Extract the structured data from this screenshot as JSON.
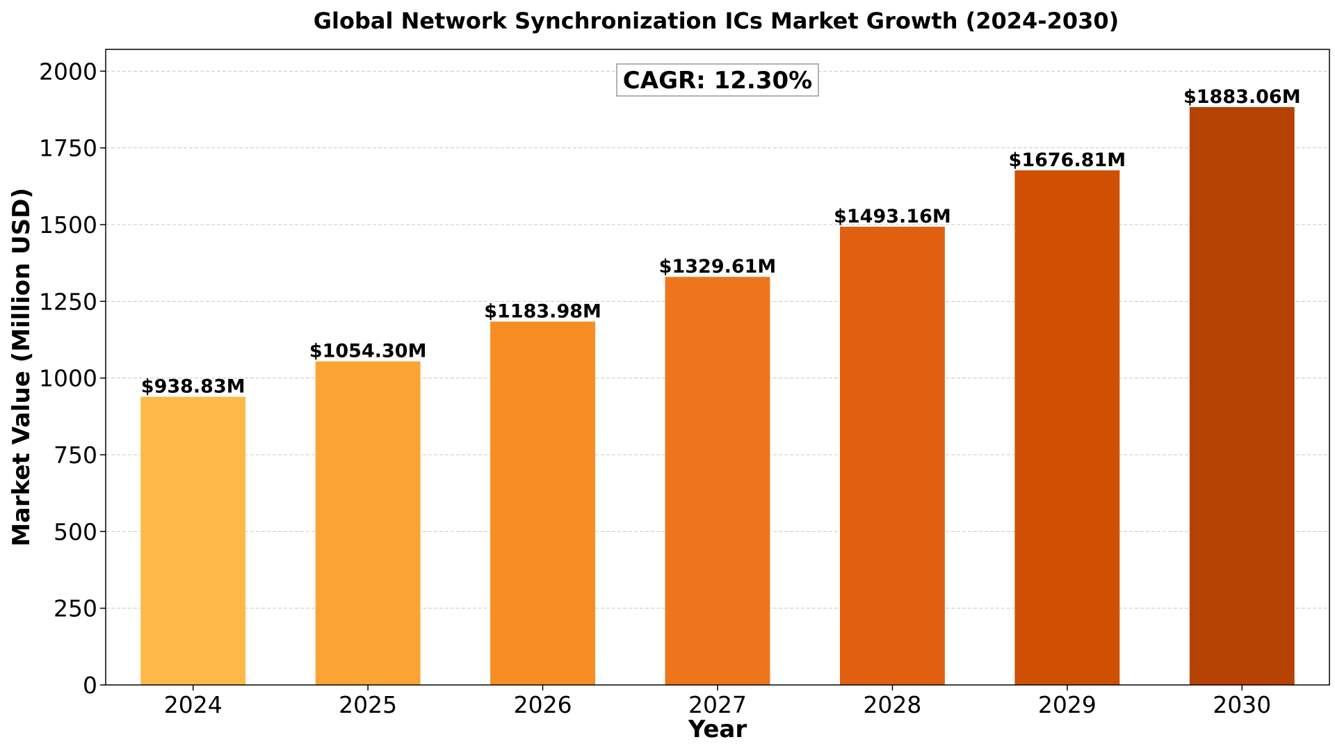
{
  "chart_data": {
    "type": "bar",
    "title": "Global Network Synchronization ICs Market Growth (2024-2030)",
    "xlabel": "Year",
    "ylabel": "Market Value (Million USD)",
    "categories": [
      "2024",
      "2025",
      "2026",
      "2027",
      "2028",
      "2029",
      "2030"
    ],
    "values": [
      938.83,
      1054.3,
      1183.98,
      1329.61,
      1493.16,
      1676.81,
      1883.06
    ],
    "value_labels": [
      "$938.83M",
      "$1054.30M",
      "$1183.98M",
      "$1329.61M",
      "$1493.16M",
      "$1676.81M",
      "$1883.06M"
    ],
    "ylim": [
      0,
      2071
    ],
    "yticks": [
      0,
      250,
      500,
      750,
      1000,
      1250,
      1500,
      1750,
      2000
    ],
    "ytick_labels": [
      "0",
      "250",
      "500",
      "750",
      "1000",
      "1250",
      "1500",
      "1750",
      "2000"
    ],
    "grid": "horizontal-dashed",
    "annotation": "CAGR: 12.30%",
    "bar_colors": [
      "#feb948",
      "#fca433",
      "#f78d23",
      "#ee751b",
      "#e06010",
      "#cf4f03",
      "#b64204"
    ]
  }
}
